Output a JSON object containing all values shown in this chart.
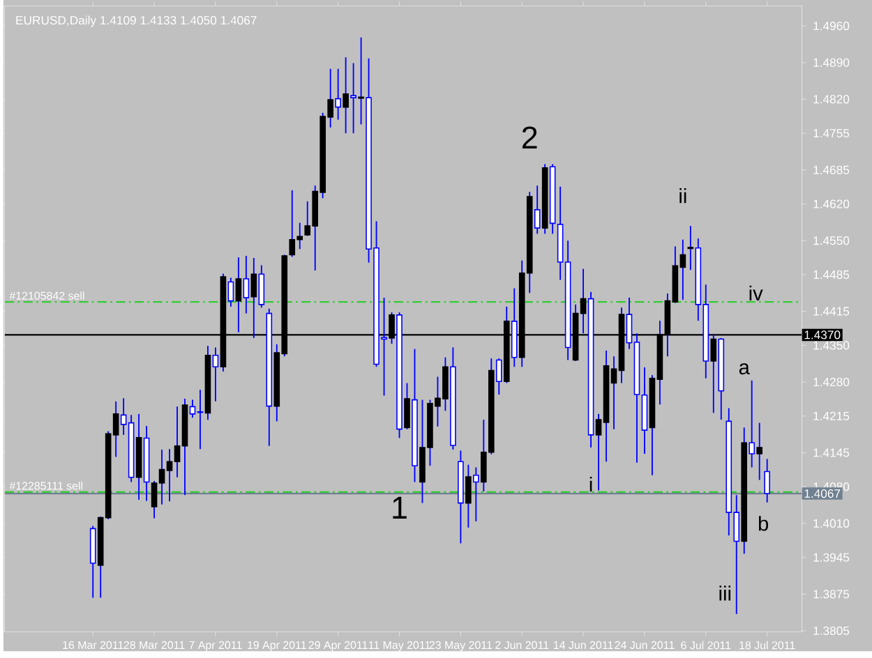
{
  "chart_data": {
    "type": "candlestick",
    "title": "EURUSD,Daily  1.4109 1.4133 1.4050 1.4067",
    "categories": [
      "16 Mar 2011",
      null,
      null,
      null,
      null,
      null,
      null,
      null,
      "28 Mar 2011",
      null,
      null,
      null,
      null,
      null,
      null,
      null,
      "7 Apr 2011",
      null,
      null,
      null,
      null,
      null,
      null,
      null,
      "19 Apr 2011",
      null,
      null,
      null,
      null,
      null,
      null,
      null,
      "29 Apr 2011",
      null,
      null,
      null,
      null,
      null,
      null,
      null,
      "11 May 2011",
      null,
      null,
      null,
      null,
      null,
      null,
      null,
      "23 May 2011",
      null,
      null,
      null,
      null,
      null,
      null,
      null,
      "2 Jun 2011",
      null,
      null,
      null,
      null,
      null,
      null,
      null,
      "14 Jun 2011",
      null,
      null,
      null,
      null,
      null,
      null,
      null,
      "24 Jun 2011",
      null,
      null,
      null,
      null,
      null,
      null,
      null,
      "6 Jul 2011",
      null,
      null,
      null,
      null,
      null,
      null,
      null,
      "18 Jul 2011"
    ],
    "ohlc": [
      [
        1.4,
        1.4005,
        1.3868,
        1.3934
      ],
      [
        1.393,
        1.4023,
        1.3868,
        1.4021
      ],
      [
        1.4021,
        1.4186,
        1.4018,
        1.4181
      ],
      [
        1.4179,
        1.4243,
        1.4137,
        1.4219
      ],
      [
        1.4217,
        1.4249,
        1.4179,
        1.4199
      ],
      [
        1.4202,
        1.4217,
        1.4089,
        1.4098
      ],
      [
        1.4098,
        1.4219,
        1.4055,
        1.4174
      ],
      [
        1.4173,
        1.4196,
        1.4053,
        1.4089
      ],
      [
        1.4042,
        1.4091,
        1.402,
        1.4087
      ],
      [
        1.4087,
        1.4151,
        1.4046,
        1.4113
      ],
      [
        1.4111,
        1.4152,
        1.4052,
        1.4128
      ],
      [
        1.4128,
        1.4233,
        1.4098,
        1.4158
      ],
      [
        1.4158,
        1.4248,
        1.4064,
        1.4236
      ],
      [
        1.4233,
        1.4246,
        1.4212,
        1.4219
      ],
      [
        1.4223,
        1.4265,
        1.4152,
        1.4222
      ],
      [
        1.4221,
        1.4349,
        1.4208,
        1.4331
      ],
      [
        1.4331,
        1.4346,
        1.4243,
        1.4309
      ],
      [
        1.4309,
        1.4487,
        1.43,
        1.4481
      ],
      [
        1.4471,
        1.4479,
        1.4424,
        1.4435
      ],
      [
        1.4435,
        1.4518,
        1.4375,
        1.4477
      ],
      [
        1.4477,
        1.4521,
        1.4411,
        1.4441
      ],
      [
        1.4443,
        1.4517,
        1.4364,
        1.4486
      ],
      [
        1.4486,
        1.4503,
        1.4422,
        1.4428
      ],
      [
        1.4411,
        1.442,
        1.4158,
        1.4234
      ],
      [
        1.4234,
        1.4352,
        1.4205,
        1.4336
      ],
      [
        1.4334,
        1.4523,
        1.4329,
        1.4521
      ],
      [
        1.4523,
        1.4646,
        1.4519,
        1.4552
      ],
      [
        1.4552,
        1.4584,
        1.4534,
        1.4558
      ],
      [
        1.4561,
        1.4625,
        1.4559,
        1.4578
      ],
      [
        1.4578,
        1.4655,
        1.4493,
        1.4644
      ],
      [
        1.4642,
        1.4794,
        1.4631,
        1.4787
      ],
      [
        1.4786,
        1.4878,
        1.4766,
        1.4819
      ],
      [
        1.4821,
        1.4878,
        1.4781,
        1.4805
      ],
      [
        1.4805,
        1.49,
        1.4755,
        1.483
      ],
      [
        1.4827,
        1.4889,
        1.4755,
        1.4823
      ],
      [
        1.4822,
        1.4938,
        1.4772,
        1.4824
      ],
      [
        1.4823,
        1.4898,
        1.4508,
        1.4534
      ],
      [
        1.4536,
        1.4587,
        1.4309,
        1.4314
      ],
      [
        1.4365,
        1.4441,
        1.4254,
        1.4362
      ],
      [
        1.4364,
        1.4413,
        1.4353,
        1.4408
      ],
      [
        1.4408,
        1.4413,
        1.4173,
        1.419
      ],
      [
        1.4193,
        1.4278,
        1.419,
        1.4248
      ],
      [
        1.4246,
        1.4343,
        1.4089,
        1.412
      ],
      [
        1.4089,
        1.4246,
        1.4049,
        1.4155
      ],
      [
        1.4155,
        1.4246,
        1.412,
        1.4239
      ],
      [
        1.4234,
        1.429,
        1.4195,
        1.4249
      ],
      [
        1.4248,
        1.4327,
        1.4225,
        1.4309
      ],
      [
        1.4309,
        1.4346,
        1.4151,
        1.4159
      ],
      [
        1.4128,
        1.4149,
        1.3972,
        1.4049
      ],
      [
        1.4049,
        1.4122,
        1.4002,
        1.4099
      ],
      [
        1.4102,
        1.4117,
        1.4014,
        1.4089
      ],
      [
        1.4089,
        1.4208,
        1.4071,
        1.4146
      ],
      [
        1.4146,
        1.4325,
        1.4142,
        1.4302
      ],
      [
        1.4322,
        1.4325,
        1.4256,
        1.4281
      ],
      [
        1.4281,
        1.4424,
        1.4278,
        1.4396
      ],
      [
        1.4396,
        1.4459,
        1.4309,
        1.4327
      ],
      [
        1.4327,
        1.4512,
        1.4309,
        1.4488
      ],
      [
        1.4488,
        1.4643,
        1.445,
        1.4634
      ],
      [
        1.4609,
        1.4655,
        1.4563,
        1.4574
      ],
      [
        1.4574,
        1.4696,
        1.4563,
        1.4689
      ],
      [
        1.4691,
        1.4696,
        1.4563,
        1.4583
      ],
      [
        1.4581,
        1.4653,
        1.4475,
        1.4509
      ],
      [
        1.4509,
        1.455,
        1.4322,
        1.4346
      ],
      [
        1.4322,
        1.4428,
        1.432,
        1.4411
      ],
      [
        1.4411,
        1.4496,
        1.4373,
        1.4439
      ],
      [
        1.4439,
        1.4452,
        1.4155,
        1.4179
      ],
      [
        1.4179,
        1.4219,
        1.4073,
        1.4208
      ],
      [
        1.4203,
        1.434,
        1.4128,
        1.4311
      ],
      [
        1.4278,
        1.4329,
        1.419,
        1.4305
      ],
      [
        1.4302,
        1.4422,
        1.4278,
        1.4409
      ],
      [
        1.4409,
        1.4441,
        1.4343,
        1.4355
      ],
      [
        1.4356,
        1.4373,
        1.4126,
        1.4256
      ],
      [
        1.4255,
        1.4308,
        1.4143,
        1.4188
      ],
      [
        1.4193,
        1.4293,
        1.4102,
        1.4287
      ],
      [
        1.4285,
        1.4397,
        1.4237,
        1.4371
      ],
      [
        1.4371,
        1.4449,
        1.4329,
        1.4435
      ],
      [
        1.4433,
        1.4539,
        1.4431,
        1.4502
      ],
      [
        1.4499,
        1.4552,
        1.4437,
        1.4523
      ],
      [
        1.4535,
        1.4578,
        1.4494,
        1.4537
      ],
      [
        1.4536,
        1.4554,
        1.4397,
        1.4428
      ],
      [
        1.4428,
        1.4466,
        1.4287,
        1.432
      ],
      [
        1.432,
        1.4371,
        1.4221,
        1.4362
      ],
      [
        1.4362,
        1.4364,
        1.4208,
        1.4263
      ],
      [
        1.4205,
        1.423,
        1.3987,
        1.4031
      ],
      [
        1.4031,
        1.4064,
        1.3837,
        1.3976
      ],
      [
        1.3976,
        1.4193,
        1.3952,
        1.4164
      ],
      [
        1.4164,
        1.4283,
        1.4117,
        1.4143
      ],
      [
        1.4143,
        1.4202,
        1.4093,
        1.4155
      ],
      [
        1.4109,
        1.4133,
        1.405,
        1.4067
      ]
    ],
    "ylim": [
      1.3803,
      1.4998
    ],
    "yticks": [
      {
        "value": 1.496,
        "label": "1.4960"
      },
      {
        "value": 1.489,
        "label": "1.4890"
      },
      {
        "value": 1.482,
        "label": "1.4820"
      },
      {
        "value": 1.4755,
        "label": "1.4755"
      },
      {
        "value": 1.4685,
        "label": "1.4685"
      },
      {
        "value": 1.462,
        "label": "1.4620"
      },
      {
        "value": 1.455,
        "label": "1.4550"
      },
      {
        "value": 1.4485,
        "label": "1.4485"
      },
      {
        "value": 1.4415,
        "label": "1.4415"
      },
      {
        "value": 1.435,
        "label": "1.4350"
      },
      {
        "value": 1.428,
        "label": "1.4280"
      },
      {
        "value": 1.4215,
        "label": "1.4215"
      },
      {
        "value": 1.4145,
        "label": "1.4145"
      },
      {
        "value": 1.408,
        "label": "1.4080"
      },
      {
        "value": 1.401,
        "label": "1.4010"
      },
      {
        "value": 1.3945,
        "label": "1.3945"
      },
      {
        "value": 1.3875,
        "label": "1.3875"
      },
      {
        "value": 1.3805,
        "label": "1.3805"
      }
    ],
    "ref_lines": [
      {
        "axis": "y",
        "value": 1.4433,
        "label": "#12105842 sell",
        "color": "#33cc33",
        "line_style": "dashed"
      },
      {
        "axis": "y",
        "value": 1.407,
        "label": "#12285111 sell",
        "color": "#33cc33",
        "line_style": "dashed"
      },
      {
        "axis": "y",
        "value": 1.437,
        "label": "1.4370",
        "color": "#000000",
        "line_style": "solid"
      },
      {
        "axis": "y",
        "value": 1.4067,
        "label": "1.4067",
        "color": "#708090",
        "line_style": "solid"
      }
    ],
    "annotations": [
      "1",
      "2",
      "i",
      "ii",
      "iii",
      "iv",
      "a",
      "b"
    ]
  }
}
